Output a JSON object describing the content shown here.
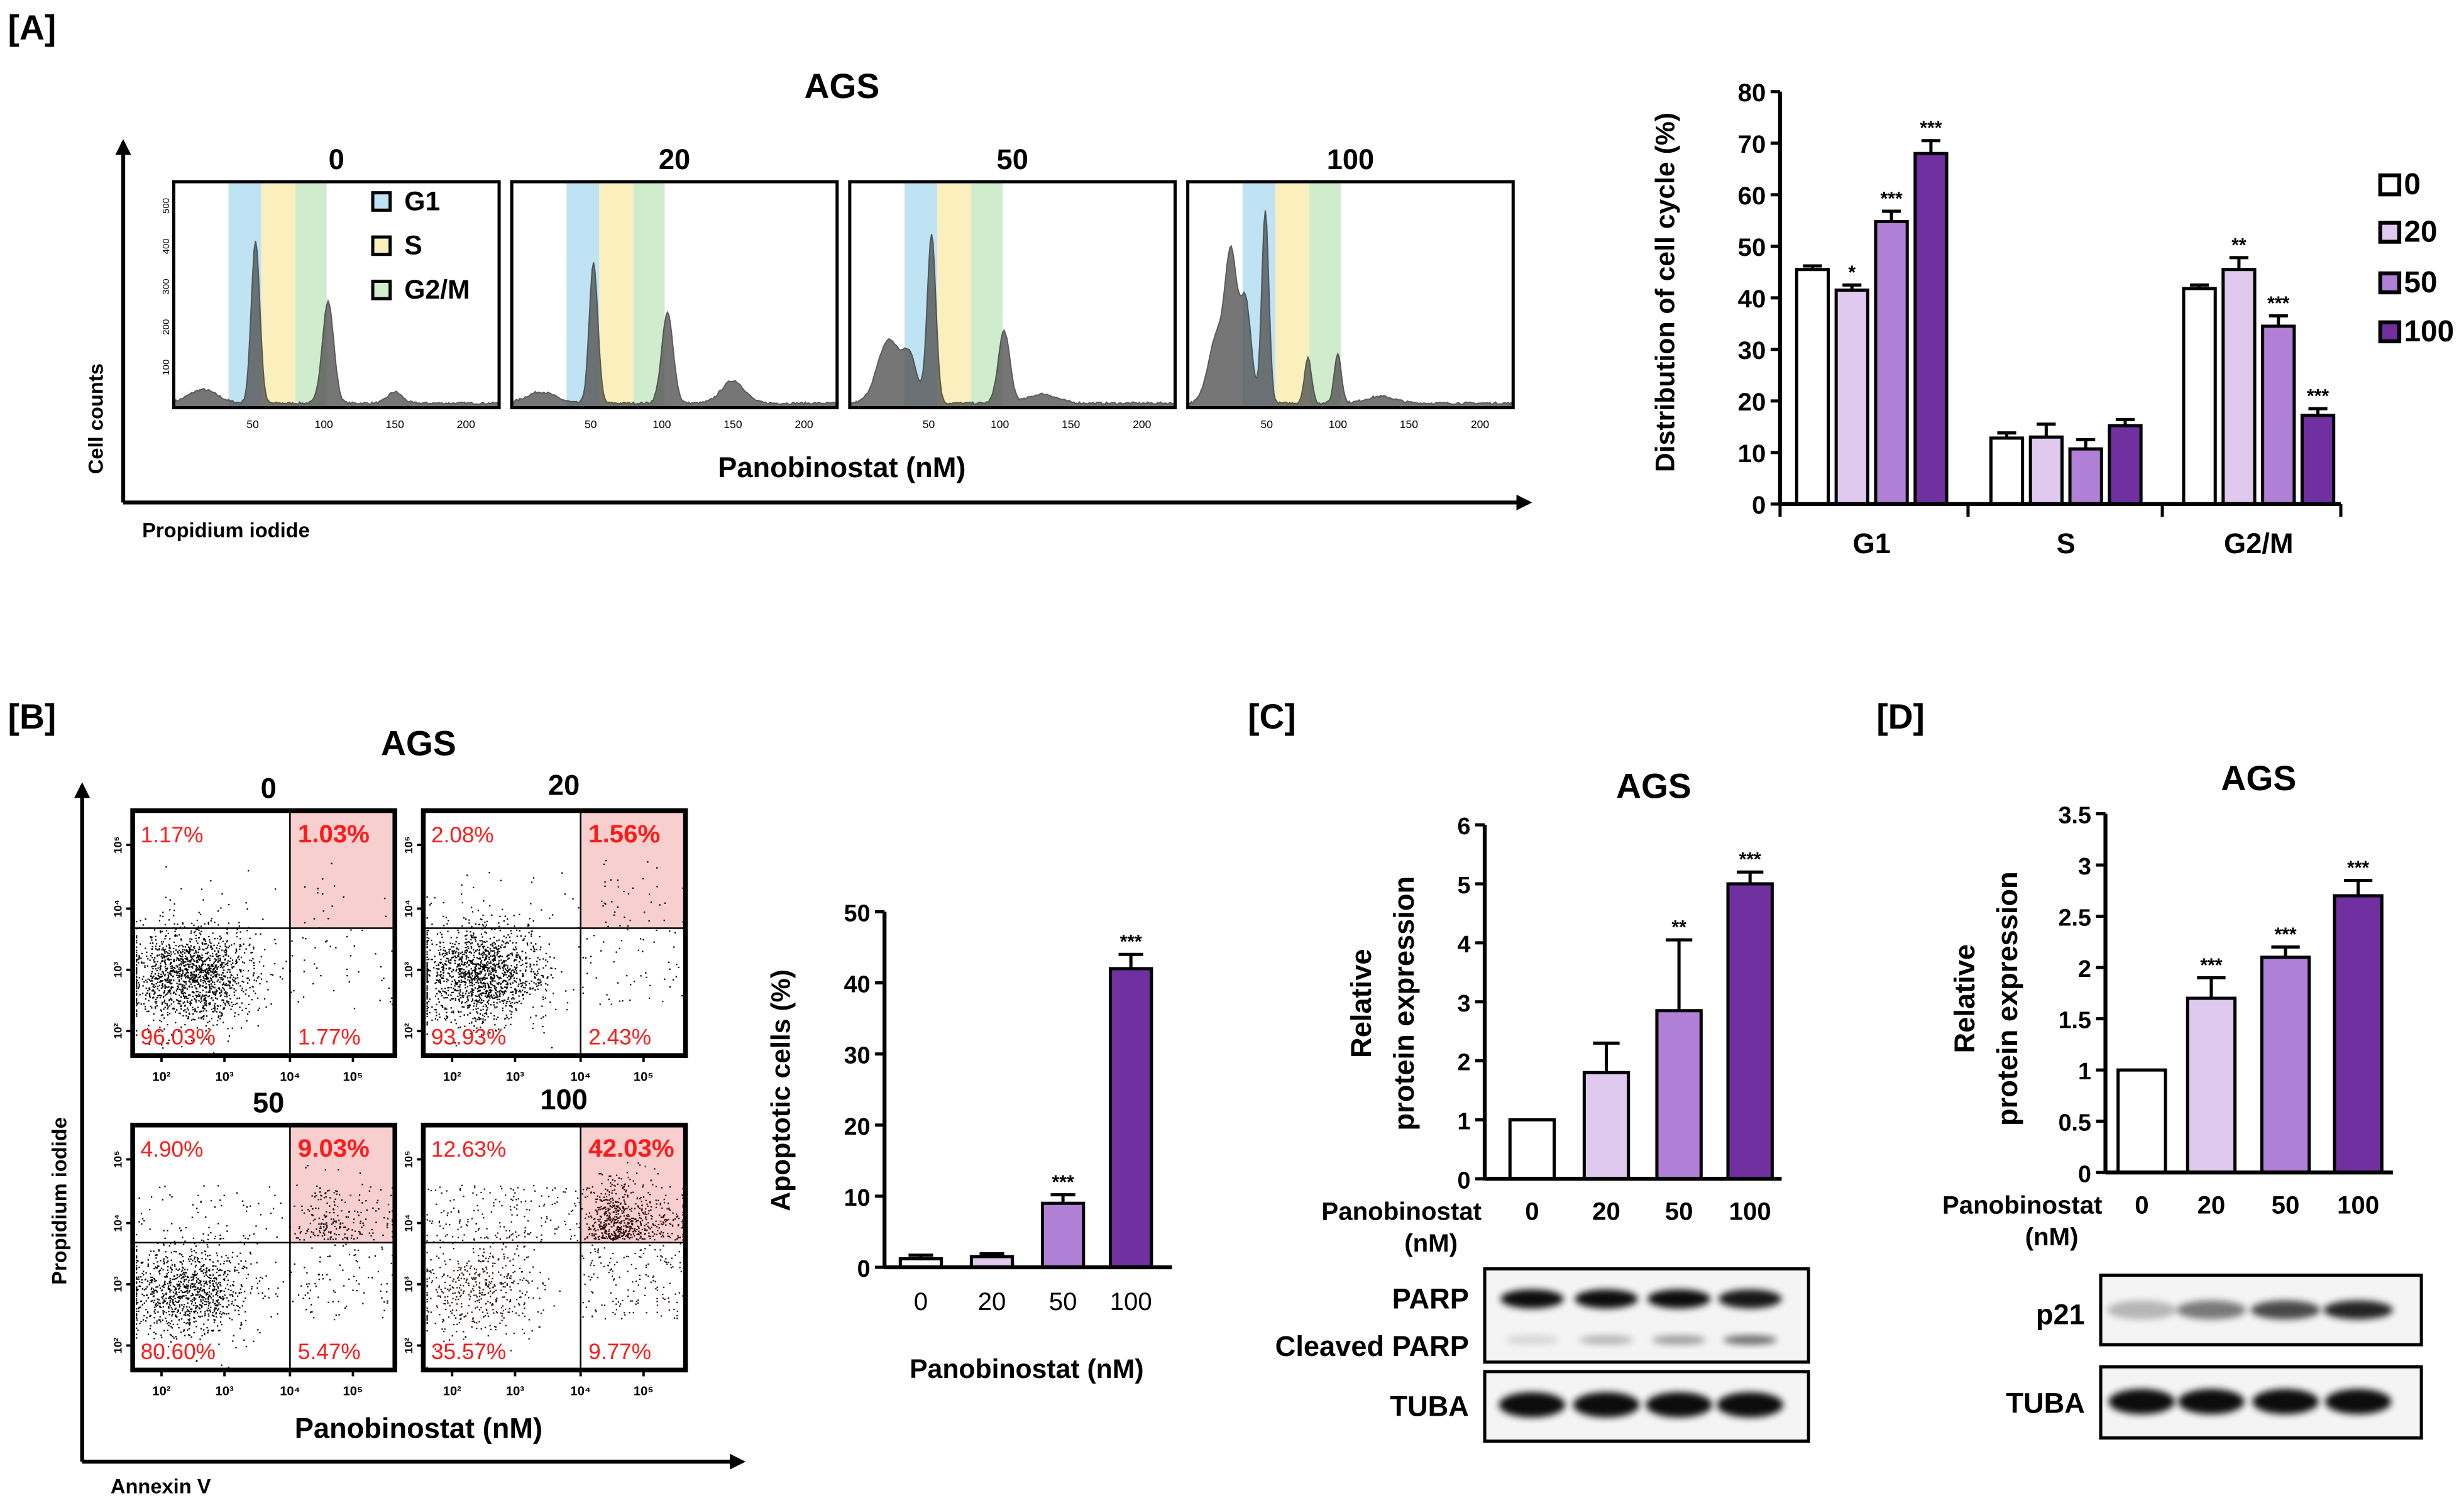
{
  "panel_labels": {
    "A": "[A]",
    "B": "[B]",
    "C": "[C]",
    "D": "[D]"
  },
  "colors": {
    "0": "#ffffff",
    "20": "#e0c9ee",
    "50": "#b07fd6",
    "100": "#7030a0",
    "red": "#ff1a1a",
    "g1_band": "#bfe3f3",
    "s_band": "#fbefbd",
    "g2m_band": "#cfeccd",
    "quad_fill": "#f8cfcf"
  },
  "chart_data": [
    {
      "id": "A_histograms",
      "type": "area",
      "title": "AGS",
      "panel_titles": [
        "0",
        "20",
        "50",
        "100"
      ],
      "xlabel": "Panobinostat (nM)",
      "x_axis_label": "Propidium iodide",
      "y_axis_label": "Cell counts",
      "x_ticks": [
        "50",
        "100",
        "150",
        "200"
      ],
      "y_ticks": [
        "100",
        "200",
        "300",
        "400",
        "500"
      ],
      "legend": [
        "G1",
        "S",
        "G2/M"
      ]
    },
    {
      "id": "A_cell_cycle",
      "type": "bar",
      "categories": [
        "G1",
        "S",
        "G2/M"
      ],
      "series": [
        {
          "name": "0",
          "values": [
            45.5,
            12.8,
            41.8
          ],
          "errors": [
            0.7,
            1.0,
            0.7
          ],
          "sig": [
            "",
            "",
            ""
          ]
        },
        {
          "name": "20",
          "values": [
            41.5,
            13.0,
            45.5
          ],
          "errors": [
            1.0,
            2.5,
            2.3
          ],
          "sig": [
            "*",
            "",
            "**"
          ]
        },
        {
          "name": "50",
          "values": [
            54.8,
            10.7,
            34.5
          ],
          "errors": [
            2.0,
            1.8,
            2.0
          ],
          "sig": [
            "***",
            "",
            "***"
          ]
        },
        {
          "name": "100",
          "values": [
            68.0,
            15.2,
            17.2
          ],
          "errors": [
            2.5,
            1.2,
            1.3
          ],
          "sig": [
            "***",
            "",
            "***"
          ]
        }
      ],
      "ylabel": "Distribution of cell cycle (%)",
      "ylim": [
        0,
        80
      ],
      "yticks": [
        "0",
        "10",
        "20",
        "30",
        "40",
        "50",
        "60",
        "70",
        "80"
      ],
      "legend_position": "right"
    },
    {
      "id": "B_flow",
      "type": "scatter",
      "title": "AGS",
      "panel_titles": [
        "0",
        "20",
        "50",
        "100"
      ],
      "quadrants": [
        {
          "ul": "1.17%",
          "ur": "1.03%",
          "ll": "96.03%",
          "lr": "1.77%"
        },
        {
          "ul": "2.08%",
          "ur": "1.56%",
          "ll": "93.93%",
          "lr": "2.43%"
        },
        {
          "ul": "4.90%",
          "ur": "9.03%",
          "ll": "80.60%",
          "lr": "5.47%"
        },
        {
          "ul": "12.63%",
          "ur": "42.03%",
          "ll": "35.57%",
          "lr": "9.77%"
        }
      ],
      "ticks": [
        "10²",
        "10³",
        "10⁴",
        "10⁵"
      ],
      "xlabel": "Panobinostat (nM)",
      "x_axis_label": "Annexin V",
      "y_axis_label": "Propidium iodide"
    },
    {
      "id": "B_apoptotic",
      "type": "bar",
      "categories": [
        "0",
        "20",
        "50",
        "100"
      ],
      "values": [
        1.2,
        1.5,
        9.0,
        42.0
      ],
      "errors": [
        0.5,
        0.4,
        1.2,
        2.0
      ],
      "sig": [
        "",
        "",
        "***",
        "***"
      ],
      "xlabel": "Panobinostat (nM)",
      "ylabel": "Apoptotic cells (%)",
      "ylim": [
        0,
        50
      ],
      "yticks": [
        "0",
        "10",
        "20",
        "30",
        "40",
        "50"
      ]
    },
    {
      "id": "C_parp",
      "type": "bar",
      "title": "AGS",
      "categories": [
        "0",
        "20",
        "50",
        "100"
      ],
      "values": [
        1.0,
        1.8,
        2.85,
        5.0
      ],
      "errors": [
        0,
        0.5,
        1.2,
        0.2
      ],
      "sig": [
        "",
        "",
        "**",
        "***"
      ],
      "xlabel": "Panobinostat",
      "xlabel_unit": "(nM)",
      "ylabel": [
        "Relative",
        "protein expression"
      ],
      "ylim": [
        0,
        6
      ],
      "yticks": [
        "0",
        "1",
        "2",
        "3",
        "4",
        "5",
        "6"
      ],
      "blot_labels": [
        "PARP",
        "Cleaved PARP",
        "TUBA"
      ]
    },
    {
      "id": "D_p21",
      "type": "bar",
      "title": "AGS",
      "categories": [
        "0",
        "20",
        "50",
        "100"
      ],
      "values": [
        1.0,
        1.7,
        2.1,
        2.7
      ],
      "errors": [
        0,
        0.2,
        0.1,
        0.15
      ],
      "sig": [
        "",
        "***",
        "***",
        "***"
      ],
      "xlabel": "Panobinostat",
      "xlabel_unit": "(nM)",
      "ylabel": [
        "Relative",
        "protein expression"
      ],
      "ylim": [
        0,
        3.5
      ],
      "yticks": [
        "0",
        "0.5",
        "1",
        "1.5",
        "2",
        "2.5",
        "3",
        "3.5"
      ],
      "blot_labels": [
        "p21",
        "TUBA"
      ]
    }
  ]
}
